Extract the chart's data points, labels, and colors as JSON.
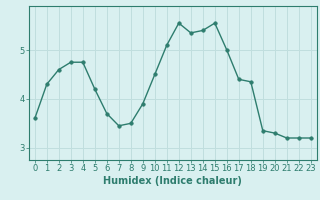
{
  "x": [
    0,
    1,
    2,
    3,
    4,
    5,
    6,
    7,
    8,
    9,
    10,
    11,
    12,
    13,
    14,
    15,
    16,
    17,
    18,
    19,
    20,
    21,
    22,
    23
  ],
  "y": [
    3.6,
    4.3,
    4.6,
    4.75,
    4.75,
    4.2,
    3.7,
    3.45,
    3.5,
    3.9,
    4.5,
    5.1,
    5.55,
    5.35,
    5.4,
    5.55,
    5.0,
    4.4,
    4.35,
    3.35,
    3.3,
    3.2,
    3.2,
    3.2
  ],
  "line_color": "#2e7d6e",
  "marker": "o",
  "marker_size": 2.5,
  "bg_color": "#d9f0f0",
  "grid_color": "#c0dede",
  "xlabel": "Humidex (Indice chaleur)",
  "xlabel_fontsize": 7,
  "xlim": [
    -0.5,
    23.5
  ],
  "ylim": [
    2.75,
    5.9
  ],
  "yticks": [
    3,
    4,
    5
  ],
  "xticks": [
    0,
    1,
    2,
    3,
    4,
    5,
    6,
    7,
    8,
    9,
    10,
    11,
    12,
    13,
    14,
    15,
    16,
    17,
    18,
    19,
    20,
    21,
    22,
    23
  ],
  "tick_fontsize": 6,
  "line_width": 1.0
}
